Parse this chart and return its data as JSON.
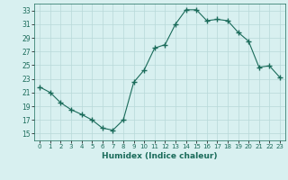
{
  "x": [
    0,
    1,
    2,
    3,
    4,
    5,
    6,
    7,
    8,
    9,
    10,
    11,
    12,
    13,
    14,
    15,
    16,
    17,
    18,
    19,
    20,
    21,
    22,
    23
  ],
  "y": [
    21.8,
    21.0,
    19.5,
    18.5,
    17.8,
    17.0,
    15.8,
    15.5,
    17.0,
    22.5,
    24.3,
    27.5,
    28.0,
    31.0,
    33.1,
    33.1,
    31.5,
    31.7,
    31.5,
    29.8,
    28.5,
    24.7,
    24.9,
    23.2
  ],
  "line_color": "#1a6b5a",
  "marker": "+",
  "marker_size": 4,
  "bg_color": "#d8f0f0",
  "grid_color": "#b8d8d8",
  "xlabel": "Humidex (Indice chaleur)",
  "ylim": [
    14,
    34
  ],
  "xlim": [
    -0.5,
    23.5
  ],
  "yticks": [
    15,
    17,
    19,
    21,
    23,
    25,
    27,
    29,
    31,
    33
  ],
  "xticks": [
    0,
    1,
    2,
    3,
    4,
    5,
    6,
    7,
    8,
    9,
    10,
    11,
    12,
    13,
    14,
    15,
    16,
    17,
    18,
    19,
    20,
    21,
    22,
    23
  ]
}
